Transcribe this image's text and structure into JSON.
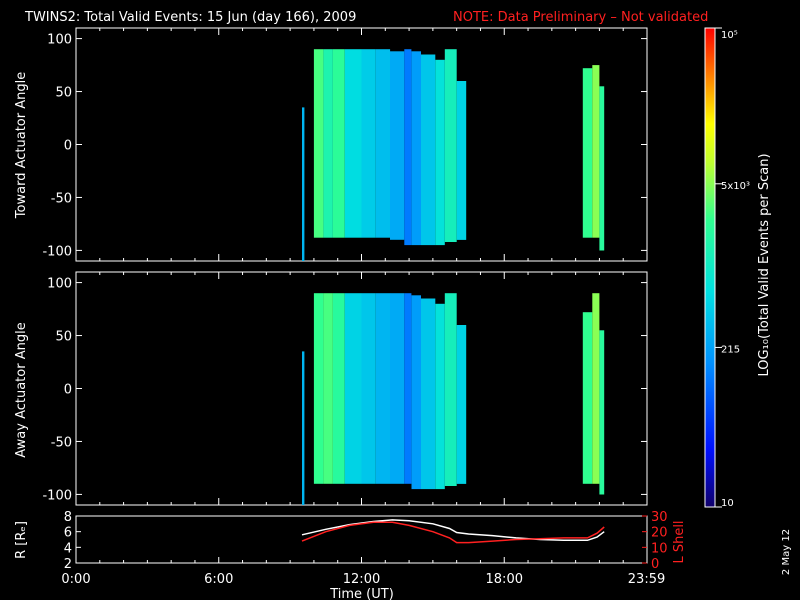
{
  "title": {
    "main": "TWINS2: Total Valid Events: 15 Jun (day 166), 2009",
    "note": "NOTE: Data Preliminary – Not validated",
    "note_color": "#ff2020"
  },
  "date_stamp": "2 May 12",
  "colorbar": {
    "label": "LOG₁₀(Total Valid Events per Scan)",
    "tick_labels": [
      "10",
      "215",
      "5x10³",
      "10⁵"
    ],
    "tick_values": [
      10,
      215,
      5000,
      100000
    ],
    "scale": "log",
    "range": [
      10,
      100000
    ]
  },
  "chart_data": [
    {
      "type": "heatmap",
      "panel": "toward",
      "ylabel": "Toward Actuator Angle",
      "ylim": [
        -110,
        110
      ],
      "yticks": [
        100,
        50,
        0,
        -50,
        -100
      ],
      "xlim_hours": [
        0,
        24
      ],
      "scale": "log",
      "bands": [
        {
          "x_start": 9.5,
          "x_end": 9.6,
          "y_min": -110,
          "y_max": 35,
          "events": 300
        },
        {
          "x_start": 10.0,
          "x_end": 10.4,
          "y_min": -88,
          "y_max": 90,
          "events": 3000
        },
        {
          "x_start": 10.4,
          "x_end": 10.8,
          "y_min": -88,
          "y_max": 90,
          "events": 1500
        },
        {
          "x_start": 10.8,
          "x_end": 11.3,
          "y_min": -88,
          "y_max": 90,
          "events": 2200
        },
        {
          "x_start": 11.3,
          "x_end": 12.0,
          "y_min": -88,
          "y_max": 90,
          "events": 600
        },
        {
          "x_start": 12.0,
          "x_end": 12.6,
          "y_min": -88,
          "y_max": 90,
          "events": 450
        },
        {
          "x_start": 12.6,
          "x_end": 13.2,
          "y_min": -88,
          "y_max": 90,
          "events": 350
        },
        {
          "x_start": 13.2,
          "x_end": 13.8,
          "y_min": -90,
          "y_max": 88,
          "events": 250
        },
        {
          "x_start": 13.8,
          "x_end": 14.1,
          "y_min": -95,
          "y_max": 90,
          "events": 120
        },
        {
          "x_start": 14.1,
          "x_end": 14.5,
          "y_min": -95,
          "y_max": 88,
          "events": 200
        },
        {
          "x_start": 14.5,
          "x_end": 15.1,
          "y_min": -95,
          "y_max": 85,
          "events": 400
        },
        {
          "x_start": 15.1,
          "x_end": 15.5,
          "y_min": -95,
          "y_max": 80,
          "events": 700
        },
        {
          "x_start": 15.5,
          "x_end": 16.0,
          "y_min": -92,
          "y_max": 90,
          "events": 1200
        },
        {
          "x_start": 16.0,
          "x_end": 16.4,
          "y_min": -90,
          "y_max": 60,
          "events": 500
        },
        {
          "x_start": 21.3,
          "x_end": 21.7,
          "y_min": -88,
          "y_max": 72,
          "events": 2500
        },
        {
          "x_start": 21.7,
          "x_end": 22.0,
          "y_min": -88,
          "y_max": 75,
          "events": 5000
        },
        {
          "x_start": 22.0,
          "x_end": 22.2,
          "y_min": -100,
          "y_max": 55,
          "events": 2000
        }
      ]
    },
    {
      "type": "heatmap",
      "panel": "away",
      "ylabel": "Away Actuator Angle",
      "ylim": [
        -110,
        110
      ],
      "yticks": [
        100,
        50,
        0,
        -50,
        -100
      ],
      "xlim_hours": [
        0,
        24
      ],
      "scale": "log",
      "bands": [
        {
          "x_start": 9.5,
          "x_end": 9.6,
          "y_min": -110,
          "y_max": 35,
          "events": 300
        },
        {
          "x_start": 10.0,
          "x_end": 10.4,
          "y_min": -90,
          "y_max": 90,
          "events": 2500
        },
        {
          "x_start": 10.4,
          "x_end": 10.8,
          "y_min": -90,
          "y_max": 90,
          "events": 3000
        },
        {
          "x_start": 10.8,
          "x_end": 11.3,
          "y_min": -90,
          "y_max": 90,
          "events": 2000
        },
        {
          "x_start": 11.3,
          "x_end": 12.0,
          "y_min": -90,
          "y_max": 90,
          "events": 500
        },
        {
          "x_start": 12.0,
          "x_end": 12.6,
          "y_min": -90,
          "y_max": 90,
          "events": 400
        },
        {
          "x_start": 12.6,
          "x_end": 13.2,
          "y_min": -90,
          "y_max": 90,
          "events": 300
        },
        {
          "x_start": 13.2,
          "x_end": 13.8,
          "y_min": -90,
          "y_max": 90,
          "events": 250
        },
        {
          "x_start": 13.8,
          "x_end": 14.1,
          "y_min": -90,
          "y_max": 90,
          "events": 120
        },
        {
          "x_start": 14.1,
          "x_end": 14.5,
          "y_min": -95,
          "y_max": 88,
          "events": 200
        },
        {
          "x_start": 14.5,
          "x_end": 15.1,
          "y_min": -95,
          "y_max": 85,
          "events": 400
        },
        {
          "x_start": 15.1,
          "x_end": 15.5,
          "y_min": -95,
          "y_max": 80,
          "events": 700
        },
        {
          "x_start": 15.5,
          "x_end": 16.0,
          "y_min": -92,
          "y_max": 90,
          "events": 1200
        },
        {
          "x_start": 16.0,
          "x_end": 16.4,
          "y_min": -90,
          "y_max": 60,
          "events": 500
        },
        {
          "x_start": 21.3,
          "x_end": 21.7,
          "y_min": -90,
          "y_max": 72,
          "events": 2500
        },
        {
          "x_start": 21.7,
          "x_end": 22.0,
          "y_min": -90,
          "y_max": 90,
          "events": 5000
        },
        {
          "x_start": 22.0,
          "x_end": 22.2,
          "y_min": -100,
          "y_max": 55,
          "events": 2000
        }
      ]
    },
    {
      "type": "line",
      "panel": "orbit",
      "ylabel": "R [Rₑ]",
      "ylabel_right": "L Shell",
      "ylim": [
        2,
        8
      ],
      "yticks": [
        2,
        4,
        6,
        8
      ],
      "ylim_right": [
        0,
        30
      ],
      "yticks_right": [
        0,
        10,
        20,
        30
      ],
      "xlabel": "Time (UT)",
      "xlim_hours": [
        0,
        24
      ],
      "x_tick_labels": [
        "0:00",
        "6:00",
        "12:00",
        "18:00",
        "23:59"
      ],
      "x_tick_hours": [
        0,
        6,
        12,
        18,
        23.98
      ],
      "series": [
        {
          "color": "#ffffff",
          "axis": "left",
          "x": [
            9.5,
            10.5,
            11.5,
            12.5,
            13.3,
            14.0,
            15.0,
            15.7,
            16.0,
            16.5,
            17.5,
            18.5,
            19.5,
            20.5,
            21.5,
            21.9,
            22.2
          ],
          "y": [
            5.6,
            6.3,
            6.9,
            7.3,
            7.5,
            7.4,
            7.0,
            6.4,
            5.9,
            5.7,
            5.5,
            5.2,
            5.0,
            4.9,
            4.9,
            5.3,
            6.0
          ]
        },
        {
          "color": "#ff2020",
          "axis": "right",
          "x": [
            9.5,
            10.5,
            11.5,
            12.5,
            13.3,
            14.0,
            15.0,
            15.7,
            16.0,
            16.5,
            17.5,
            18.5,
            19.5,
            20.5,
            21.5,
            21.9,
            22.2
          ],
          "y": [
            14,
            20,
            24,
            26,
            26,
            24,
            20,
            16,
            13,
            13,
            14,
            15,
            15.5,
            16,
            16,
            19,
            23
          ]
        }
      ]
    }
  ]
}
